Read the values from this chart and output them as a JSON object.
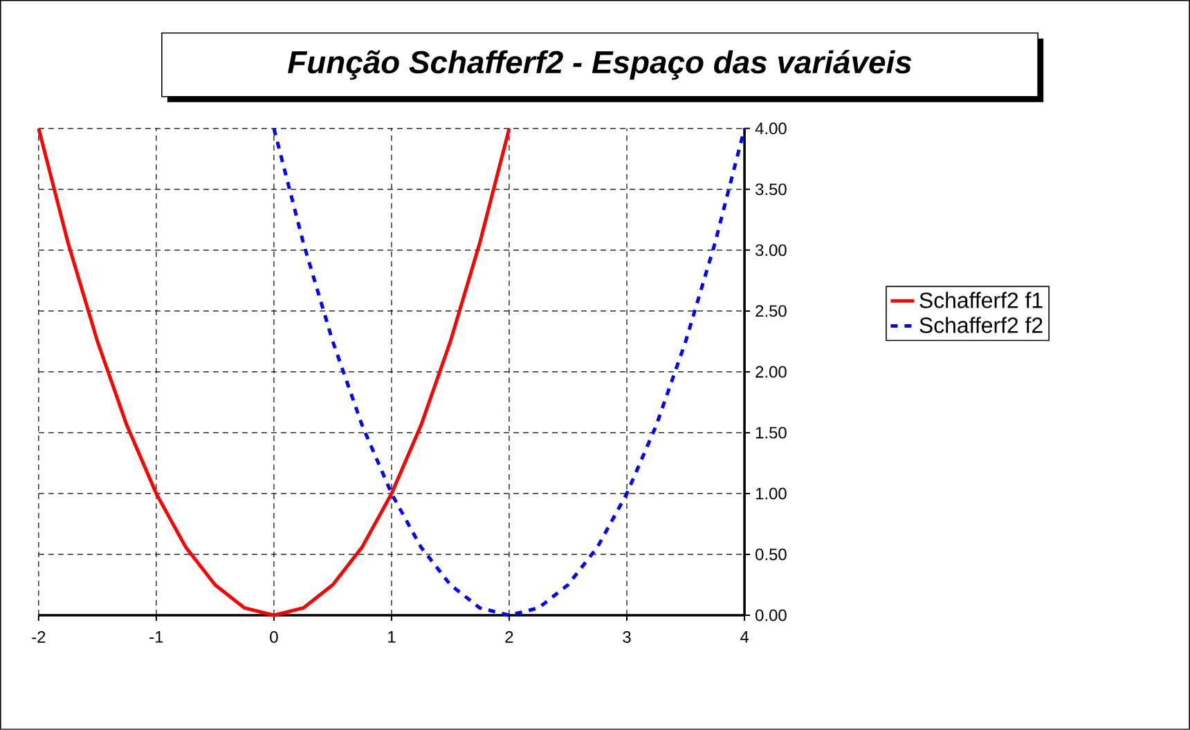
{
  "chart_data": {
    "type": "line",
    "title": "*Função Schafferf2 - Espaço das variáveis*",
    "xlim": [
      -2,
      4
    ],
    "ylim": [
      0,
      4
    ],
    "xticks": [
      -2,
      -1,
      0,
      1,
      2,
      3,
      4
    ],
    "yticks": [
      {
        "value": 0,
        "label": "0.00"
      },
      {
        "value": 0.5,
        "label": "0.50"
      },
      {
        "value": 1,
        "label": "1.00"
      },
      {
        "value": 1.5,
        "label": "1.50"
      },
      {
        "value": 2,
        "label": "2.00"
      },
      {
        "value": 2.5,
        "label": "2.50"
      },
      {
        "value": 3,
        "label": "3.00"
      },
      {
        "value": 3.5,
        "label": "3.50"
      },
      {
        "value": 4,
        "label": "4.00"
      }
    ],
    "grid": true,
    "legend": "right",
    "marker": "none",
    "series": [
      {
        "name": "Schafferf2 f1",
        "color": "#ff0000",
        "line_style": "solid",
        "x": [
          -2,
          -1.75,
          -1.5,
          -1.25,
          -1,
          -0.75,
          -0.5,
          -0.25,
          0,
          0.25,
          0.5,
          0.75,
          1,
          1.25,
          1.5,
          1.75,
          2
        ],
        "values": [
          4,
          3.06,
          2.25,
          1.56,
          1,
          0.56,
          0.25,
          0.06,
          0,
          0.06,
          0.25,
          0.56,
          1,
          1.56,
          2.25,
          3.06,
          4
        ]
      },
      {
        "name": "Schafferf2 f2",
        "color": "#0000ff",
        "line_style": "dashed",
        "x": [
          0,
          0.25,
          0.5,
          0.75,
          1,
          1.25,
          1.5,
          1.75,
          2,
          2.25,
          2.5,
          2.75,
          3,
          3.25,
          3.5,
          3.75,
          4
        ],
        "values": [
          4,
          3.06,
          2.25,
          1.56,
          1,
          0.56,
          0.25,
          0.06,
          0,
          0.06,
          0.25,
          0.56,
          1,
          1.56,
          2.25,
          3.06,
          4
        ]
      }
    ]
  }
}
